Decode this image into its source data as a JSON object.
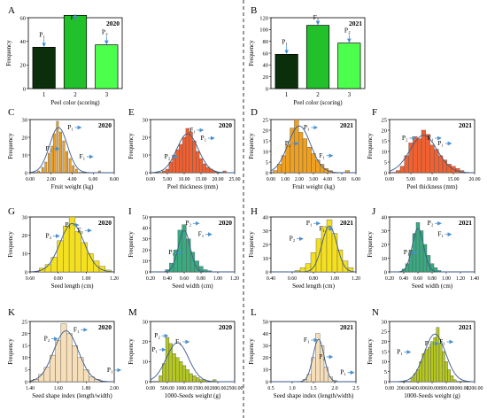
{
  "divider": true,
  "colors": {
    "peel1": "#0b2e0b",
    "peel2": "#22c02a",
    "peel3": "#4dff4d",
    "weight": "#f0a020",
    "thickness": "#f06030",
    "length": "#f5e020",
    "width": "#3aaa80",
    "shape": "#f5deb8",
    "seeds": "#b4c820",
    "curve": "#3a5a8a",
    "arrow": "#4a90d0"
  },
  "chart_data": [
    {
      "id": "A",
      "year": "2020",
      "type": "bar",
      "categories": [
        "1",
        "2",
        "3"
      ],
      "values": [
        35,
        62,
        37
      ],
      "ylim": [
        0,
        60
      ],
      "yticks": [
        "0",
        "20",
        "40",
        "60"
      ],
      "ylabel": "Frequency",
      "xlabel": "Peel color (scoring)",
      "colorKeys": [
        "peel1",
        "peel2",
        "peel3"
      ],
      "labels": [
        "P₁",
        "F₁",
        "P₂"
      ]
    },
    {
      "id": "B",
      "year": "2021",
      "type": "bar",
      "categories": [
        "1",
        "2",
        "3"
      ],
      "values": [
        58,
        107,
        77
      ],
      "ylim": [
        0,
        120
      ],
      "yticks": [
        "0",
        "20",
        "40",
        "60",
        "80",
        "100",
        "120"
      ],
      "ylabel": "Frequency",
      "xlabel": "Peel color (scoring)",
      "colorKeys": [
        "peel1",
        "peel2",
        "peel3"
      ],
      "labels": [
        "P₁",
        "F₁",
        "P₂"
      ]
    },
    {
      "id": "C",
      "year": "2020",
      "type": "bar",
      "color": "weight",
      "xlim": [
        0,
        8
      ],
      "xticks": [
        "0.00",
        "2.00",
        "4.00",
        "6.00",
        "8.00"
      ],
      "ylim": [
        0,
        30
      ],
      "yticks": [
        "0",
        "10",
        "20",
        "30"
      ],
      "bins": [
        [
          0.8,
          1
        ],
        [
          1.2,
          3
        ],
        [
          1.5,
          6
        ],
        [
          1.8,
          11
        ],
        [
          2.1,
          15
        ],
        [
          2.3,
          22
        ],
        [
          2.6,
          29
        ],
        [
          2.9,
          23
        ],
        [
          3.2,
          18
        ],
        [
          3.5,
          12
        ],
        [
          3.8,
          8
        ],
        [
          4.1,
          4
        ],
        [
          4.4,
          2
        ],
        [
          6.6,
          1
        ]
      ],
      "curve": [
        2.7,
        0.85
      ],
      "labels": [
        "P₂",
        "P₁",
        "F₁"
      ],
      "ylabel": "Frequency",
      "xlabel": "Fruit weight (kg)"
    },
    {
      "id": "E",
      "year": "2020",
      "type": "bar",
      "color": "thickness",
      "xlim": [
        0,
        25
      ],
      "xticks": [
        "0.00",
        "5.00",
        "10.00",
        "15.00",
        "20.00",
        "25.00"
      ],
      "ylim": [
        0,
        30
      ],
      "yticks": [
        "0",
        "10",
        "20",
        "30"
      ],
      "bins": [
        [
          4,
          1
        ],
        [
          5,
          2
        ],
        [
          6,
          6
        ],
        [
          7,
          10
        ],
        [
          8,
          13
        ],
        [
          9,
          16
        ],
        [
          10,
          20
        ],
        [
          11,
          25
        ],
        [
          12,
          23
        ],
        [
          13,
          18
        ],
        [
          14,
          12
        ],
        [
          15,
          8
        ],
        [
          16,
          5
        ],
        [
          17,
          3
        ],
        [
          18,
          2
        ],
        [
          19,
          1
        ],
        [
          22,
          1
        ]
      ],
      "curve": [
        11,
        3.2
      ],
      "labels": [
        "P₂",
        "F₁",
        "P₁"
      ],
      "ylabel": "Frequency",
      "xlabel": "Peel thickness (mm)"
    },
    {
      "id": "D",
      "year": "2021",
      "type": "bar",
      "color": "weight",
      "xlim": [
        0,
        6
      ],
      "xticks": [
        "0.00",
        "1.00",
        "2.00",
        "3.00",
        "4.00",
        "5.00",
        "6.00"
      ],
      "ylim": [
        0,
        25
      ],
      "yticks": [
        "0",
        "5",
        "10",
        "15",
        "20",
        "25"
      ],
      "bins": [
        [
          0.3,
          1
        ],
        [
          0.6,
          4
        ],
        [
          0.9,
          8
        ],
        [
          1.2,
          13
        ],
        [
          1.5,
          21
        ],
        [
          1.8,
          25
        ],
        [
          2.1,
          19
        ],
        [
          2.4,
          16
        ],
        [
          2.7,
          12
        ],
        [
          3.0,
          9
        ],
        [
          3.3,
          6
        ],
        [
          3.6,
          4
        ],
        [
          3.9,
          2
        ],
        [
          4.2,
          1
        ],
        [
          5.4,
          1
        ]
      ],
      "curve": [
        2.0,
        0.8
      ],
      "labels": [
        "P₂",
        "P₁",
        "F₁"
      ],
      "ylabel": "Frequency",
      "xlabel": "Fruit weight (kg)"
    },
    {
      "id": "F",
      "year": "2021",
      "type": "bar",
      "color": "thickness",
      "xlim": [
        0,
        20
      ],
      "xticks": [
        "0.00",
        "5.00",
        "10.00",
        "15.00",
        "20.00"
      ],
      "ylim": [
        0,
        25
      ],
      "yticks": [
        "0",
        "5",
        "10",
        "15",
        "20",
        "25"
      ],
      "bins": [
        [
          2,
          1
        ],
        [
          3,
          3
        ],
        [
          4,
          8
        ],
        [
          5,
          14
        ],
        [
          6,
          17
        ],
        [
          7,
          16
        ],
        [
          8,
          20
        ],
        [
          9,
          18
        ],
        [
          10,
          13
        ],
        [
          11,
          11
        ],
        [
          12,
          8
        ],
        [
          13,
          6
        ],
        [
          14,
          4
        ],
        [
          15,
          3
        ],
        [
          16,
          2
        ],
        [
          17,
          1
        ]
      ],
      "curve": [
        8,
        3.2
      ],
      "labels": [
        "P₂",
        "F₁",
        "P₁"
      ],
      "ylabel": "Frequency",
      "xlabel": "Peel thickness (mm)"
    },
    {
      "id": "G",
      "year": "2020",
      "type": "bar",
      "color": "length",
      "xlim": [
        0.6,
        1.3
      ],
      "xticks": [
        "0.60",
        "0.80",
        "1.00",
        "1.20"
      ],
      "ylim": [
        0,
        30
      ],
      "yticks": [
        "0",
        "10",
        "20",
        "30"
      ],
      "bins": [
        [
          0.7,
          2
        ],
        [
          0.75,
          4
        ],
        [
          0.8,
          8
        ],
        [
          0.85,
          17
        ],
        [
          0.9,
          25
        ],
        [
          0.95,
          30
        ],
        [
          1.0,
          22
        ],
        [
          1.05,
          16
        ],
        [
          1.1,
          10
        ],
        [
          1.15,
          6
        ],
        [
          1.2,
          3
        ],
        [
          1.25,
          1
        ]
      ],
      "curve": [
        0.95,
        0.1
      ],
      "labels": [
        "P₂",
        "P₁",
        "F₁"
      ],
      "ylabel": "Frequency",
      "xlabel": "Seed length (cm)"
    },
    {
      "id": "I",
      "year": "2020",
      "type": "bar",
      "color": "width",
      "xlim": [
        0.2,
        1.2
      ],
      "xticks": [
        "0.20",
        "0.40",
        "0.60",
        "0.80",
        "1.00",
        "1.20"
      ],
      "ylim": [
        0,
        50
      ],
      "yticks": [
        "0",
        "10",
        "20",
        "30",
        "40",
        "50"
      ],
      "bins": [
        [
          0.4,
          2
        ],
        [
          0.45,
          8
        ],
        [
          0.5,
          20
        ],
        [
          0.55,
          38
        ],
        [
          0.6,
          43
        ],
        [
          0.65,
          30
        ],
        [
          0.7,
          18
        ],
        [
          0.75,
          10
        ],
        [
          0.8,
          5
        ],
        [
          0.85,
          2
        ],
        [
          0.9,
          1
        ]
      ],
      "curve": [
        0.6,
        0.07
      ],
      "labels": [
        "P₁",
        "P₂",
        "F₁"
      ],
      "ylabel": "Frequency",
      "xlabel": "Seed width (cm)"
    },
    {
      "id": "H",
      "year": "2021",
      "type": "bar",
      "color": "length",
      "xlim": [
        0.4,
        1.2
      ],
      "xticks": [
        "0.40",
        "0.60",
        "0.80",
        "1.00",
        "1.20"
      ],
      "ylim": [
        0,
        40
      ],
      "yticks": [
        "0",
        "10",
        "20",
        "30",
        "40"
      ],
      "bins": [
        [
          0.65,
          1
        ],
        [
          0.7,
          3
        ],
        [
          0.75,
          6
        ],
        [
          0.8,
          14
        ],
        [
          0.85,
          24
        ],
        [
          0.9,
          33
        ],
        [
          0.95,
          38
        ],
        [
          1.0,
          28
        ],
        [
          1.05,
          16
        ],
        [
          1.1,
          8
        ],
        [
          1.15,
          3
        ]
      ],
      "curve": [
        0.95,
        0.07
      ],
      "labels": [
        "P₂",
        "P₁",
        "F₁"
      ],
      "ylabel": "Frequency",
      "xlabel": "Seed length (cm)"
    },
    {
      "id": "J",
      "year": "2021",
      "type": "bar",
      "color": "width",
      "xlim": [
        0.2,
        1.4
      ],
      "xticks": [
        "0.20",
        "0.40",
        "0.60",
        "0.80",
        "1.00",
        "1.20",
        "1.40"
      ],
      "ylim": [
        0,
        40
      ],
      "yticks": [
        "0",
        "10",
        "20",
        "30",
        "40"
      ],
      "bins": [
        [
          0.4,
          2
        ],
        [
          0.45,
          6
        ],
        [
          0.5,
          16
        ],
        [
          0.55,
          28
        ],
        [
          0.6,
          36
        ],
        [
          0.65,
          30
        ],
        [
          0.7,
          20
        ],
        [
          0.75,
          12
        ],
        [
          0.8,
          6
        ],
        [
          0.85,
          3
        ],
        [
          0.9,
          1
        ]
      ],
      "curve": [
        0.6,
        0.08
      ],
      "labels": [
        "P₁",
        "P₂",
        "F₁"
      ],
      "ylabel": "Frequency",
      "xlabel": "Seed width (cm)"
    },
    {
      "id": "K",
      "year": "2020",
      "type": "bar",
      "color": "shape",
      "xlim": [
        1.3,
        2.05
      ],
      "xticks": [
        "1.40",
        "1.60",
        "1.80",
        "2.00"
      ],
      "ylim": [
        0,
        25
      ],
      "yticks": [
        "0",
        "5",
        "10",
        "15",
        "20",
        "25"
      ],
      "bins": [
        [
          1.35,
          1
        ],
        [
          1.4,
          3
        ],
        [
          1.45,
          6
        ],
        [
          1.5,
          11
        ],
        [
          1.55,
          17
        ],
        [
          1.6,
          24
        ],
        [
          1.65,
          20
        ],
        [
          1.7,
          15
        ],
        [
          1.75,
          10
        ],
        [
          1.8,
          5
        ],
        [
          1.85,
          2
        ],
        [
          1.9,
          1
        ]
      ],
      "curve": [
        1.62,
        0.11
      ],
      "labels": [
        "P₂",
        "F₁",
        "P₁"
      ],
      "ylabel": "Frequency",
      "xlabel": "Seed shape index (length/width)"
    },
    {
      "id": "M",
      "year": "2020",
      "type": "bar",
      "color": "seeds",
      "xlim": [
        0,
        2500
      ],
      "xticks": [
        "0.00",
        "500.00",
        "1000.00",
        "1500.00",
        "2000.00",
        "2500.00"
      ],
      "ylim": [
        0,
        30
      ],
      "yticks": [
        "0",
        "10",
        "20",
        "30"
      ],
      "bins": [
        [
          300,
          3
        ],
        [
          400,
          9
        ],
        [
          500,
          22
        ],
        [
          600,
          19
        ],
        [
          700,
          14
        ],
        [
          800,
          12
        ],
        [
          900,
          10
        ],
        [
          1000,
          8
        ],
        [
          1100,
          6
        ],
        [
          1200,
          4
        ],
        [
          1300,
          3
        ],
        [
          1400,
          2
        ],
        [
          1500,
          1
        ],
        [
          1600,
          1
        ],
        [
          1900,
          1
        ]
      ],
      "curve": [
        800,
        330
      ],
      "labels": [
        "P₂",
        "P₁",
        "F₁"
      ],
      "ylabel": "Frequency",
      "xlabel": "1000-Seeds weight (g)"
    },
    {
      "id": "L",
      "year": "2021",
      "type": "bar",
      "color": "shape",
      "xlim": [
        0.5,
        2.5
      ],
      "xticks": [
        "0.5",
        "1.0",
        "1.5",
        "2.0",
        "2.5"
      ],
      "ylim": [
        0,
        50
      ],
      "yticks": [
        "0",
        "10",
        "20",
        "30",
        "40",
        "50"
      ],
      "bins": [
        [
          1.3,
          2
        ],
        [
          1.4,
          6
        ],
        [
          1.5,
          20
        ],
        [
          1.6,
          40
        ],
        [
          1.7,
          30
        ],
        [
          1.8,
          12
        ],
        [
          1.9,
          4
        ],
        [
          2.0,
          1
        ]
      ],
      "curve": [
        1.62,
        0.13
      ],
      "labels": [
        "F₁",
        "P₂",
        "P₁"
      ],
      "ylabel": "Frequency",
      "xlabel": "Seed shape index (length/width)"
    },
    {
      "id": "N",
      "year": "2021",
      "type": "bar",
      "color": "seeds",
      "xlim": [
        0,
        1200
      ],
      "xticks": [
        "0.00",
        "200.00",
        "400.00",
        "600.00",
        "800.00",
        "1000.00",
        "1200.00"
      ],
      "ylim": [
        0,
        30
      ],
      "yticks": [
        "0",
        "5",
        "10",
        "15",
        "20",
        "25",
        "30"
      ],
      "bins": [
        [
          320,
          2
        ],
        [
          360,
          4
        ],
        [
          400,
          6
        ],
        [
          440,
          10
        ],
        [
          480,
          14
        ],
        [
          520,
          16
        ],
        [
          560,
          17
        ],
        [
          600,
          20
        ],
        [
          640,
          22
        ],
        [
          680,
          27
        ],
        [
          720,
          19
        ],
        [
          760,
          15
        ],
        [
          800,
          10
        ],
        [
          840,
          6
        ],
        [
          880,
          3
        ],
        [
          920,
          1
        ]
      ],
      "curve": [
        640,
        150
      ],
      "labels": [
        "P₁",
        "P₂",
        "F₁"
      ],
      "ylabel": "Frequency",
      "xlabel": "1000-Seeds weight (g)"
    }
  ]
}
